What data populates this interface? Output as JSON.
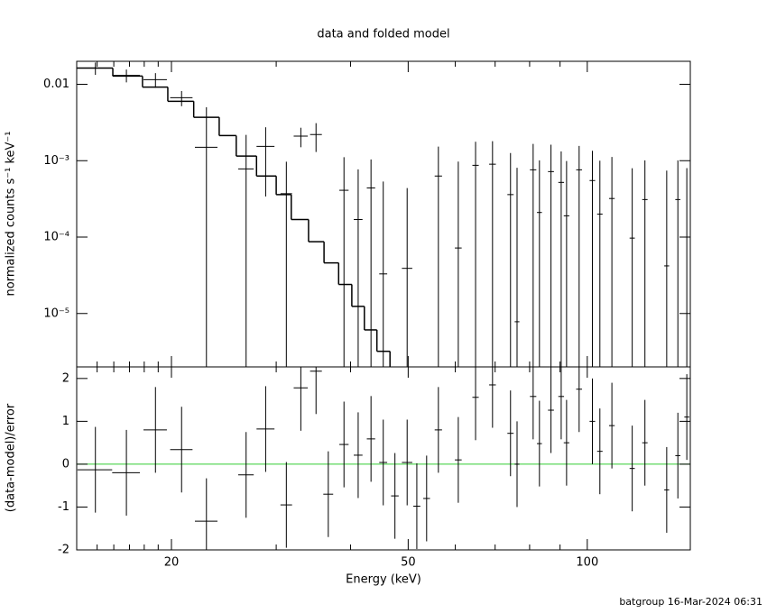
{
  "chart_data": [
    {
      "type": "errorbar",
      "title": "data and folded model",
      "ylabel": "normalized counts s⁻¹ keV⁻¹",
      "xscale": "log",
      "yscale": "log",
      "xlim": [
        13.86,
        149
      ],
      "ylim": [
        2e-06,
        0.02
      ],
      "yticks": [
        0.01,
        {
          "value": 0.001,
          "label": "10⁻³"
        },
        {
          "value": 0.0001,
          "label": "10⁻⁴"
        },
        {
          "value": 1e-05,
          "label": "10⁻⁵"
        }
      ],
      "color": "#000000",
      "x": [
        14.9,
        16.8,
        18.8,
        20.8,
        22.9,
        26.7,
        28.8,
        31.2,
        33.0,
        35.0,
        36.7,
        39.0,
        41.2,
        43.3,
        45.4,
        47.5,
        49.8,
        51.7,
        53.7,
        56.2,
        60.7,
        64.9,
        69.3,
        74.3,
        76.2,
        81.1,
        83.1,
        86.9,
        90.4,
        92.3,
        96.9,
        102,
        105,
        110,
        119,
        125,
        136,
        142,
        147
      ],
      "xerr": [
        1.0,
        0.9,
        0.85,
        0.9,
        1.0,
        0.8,
        1.0,
        0.7,
        0.9,
        0.8,
        0.7,
        0.7,
        0.7,
        0.7,
        0.7,
        0.7,
        1.0,
        0.7,
        0.7,
        0.8,
        0.8,
        0.8,
        0.9,
        0.9,
        0.7,
        1.0,
        0.8,
        1.0,
        1.0,
        1.0,
        1.1,
        1.1,
        1.1,
        1.2,
        1.2,
        1.3,
        1.3,
        1.4,
        1.4
      ],
      "values": [
        0.0163,
        0.0131,
        0.0115,
        0.00667,
        0.0015,
        0.00078,
        0.00154,
        0.00037,
        0.0021,
        0.0022,
        null,
        0.00041,
        0.00017,
        0.00044,
        3.3e-05,
        null,
        3.9e-05,
        null,
        null,
        0.00063,
        7.2e-05,
        0.00087,
        0.0009,
        0.00036,
        7.8e-06,
        0.00076,
        0.00021,
        0.00072,
        0.00052,
        0.00019,
        0.00076,
        0.00055,
        0.0002,
        0.00032,
        9.7e-05,
        0.00031,
        4.2e-05,
        0.00031,
        0.0001
      ],
      "yerr": [
        0.003,
        0.0025,
        0.0025,
        0.0015,
        0.0035,
        0.0014,
        0.0012,
        0.0006,
        0.0006,
        0.0009,
        null,
        0.0007,
        0.0006,
        0.0006,
        0.0005,
        null,
        0.0004,
        null,
        null,
        0.0009,
        0.0009,
        0.0009,
        0.0009,
        0.0009,
        0.0008,
        0.0009,
        0.0008,
        0.0009,
        0.0008,
        0.0008,
        0.0008,
        0.0008,
        0.0008,
        0.0008,
        0.0007,
        0.0007,
        0.0007,
        0.0007,
        0.0007
      ],
      "model": {
        "bins": [
          13.86,
          15.94,
          17.88,
          19.72,
          21.8,
          24.06,
          25.7,
          27.8,
          30.0,
          31.8,
          34.0,
          36.1,
          38.2,
          40.2,
          42.2,
          44.3,
          46.6
        ],
        "values": [
          0.0163,
          0.0128,
          0.0092,
          0.006,
          0.0037,
          0.00213,
          0.00115,
          0.00063,
          0.00036,
          0.00017,
          8.7e-05,
          4.6e-05,
          2.4e-05,
          1.24e-05,
          6.1e-06,
          3.2e-06
        ]
      }
    },
    {
      "type": "residual",
      "xlabel": "Energy (keV)",
      "ylabel": "(data-model)/error",
      "xscale": "log",
      "xlim": [
        13.86,
        149
      ],
      "ylim": [
        -2,
        2.27
      ],
      "xticks": [
        20,
        50,
        100
      ],
      "xminor": [
        15,
        16,
        17,
        18,
        19,
        30,
        40,
        60,
        70,
        80,
        90
      ],
      "yticks": [
        -2,
        -1,
        0,
        1,
        2
      ],
      "zero_color": "#33cc33",
      "color": "#000000",
      "x": [
        14.9,
        16.8,
        18.8,
        20.8,
        22.9,
        26.7,
        28.8,
        31.2,
        33.0,
        35.0,
        36.7,
        39.0,
        41.2,
        43.3,
        45.4,
        47.5,
        49.8,
        51.7,
        53.7,
        56.2,
        60.7,
        64.9,
        69.3,
        74.3,
        76.2,
        81.1,
        83.1,
        86.9,
        90.4,
        92.3,
        96.9,
        102,
        105,
        110,
        119,
        125,
        136,
        142,
        147
      ],
      "xerr": [
        1.0,
        0.9,
        0.85,
        0.9,
        1.0,
        0.8,
        1.0,
        0.7,
        0.9,
        0.8,
        0.7,
        0.7,
        0.7,
        0.7,
        0.7,
        0.7,
        1.0,
        0.7,
        0.7,
        0.8,
        0.8,
        0.8,
        0.9,
        0.9,
        0.7,
        1.0,
        0.8,
        1.0,
        1.0,
        1.0,
        1.1,
        1.1,
        1.1,
        1.2,
        1.2,
        1.3,
        1.3,
        1.4,
        1.4
      ],
      "values": [
        -0.13,
        -0.2,
        0.8,
        0.34,
        -1.33,
        -0.25,
        0.82,
        -0.95,
        1.78,
        2.17,
        -0.7,
        0.46,
        0.21,
        0.59,
        0.04,
        -0.74,
        0.04,
        -0.98,
        -0.8,
        0.8,
        0.1,
        1.56,
        1.85,
        0.72,
        0.0,
        1.58,
        0.48,
        1.26,
        1.58,
        0.5,
        1.75,
        1.0,
        0.3,
        0.9,
        -0.1,
        0.5,
        -0.6,
        0.2,
        1.1
      ],
      "yerr": [
        1,
        1,
        1,
        1,
        1,
        1,
        1,
        1,
        1,
        1,
        1,
        1,
        1,
        1,
        1,
        1,
        1,
        1,
        1,
        1,
        1,
        1,
        1,
        1,
        1,
        1,
        1,
        1,
        1,
        1,
        1,
        1,
        1,
        1,
        1,
        1,
        1,
        1,
        1
      ]
    }
  ],
  "footer": "batgroup 16-Mar-2024 06:31"
}
